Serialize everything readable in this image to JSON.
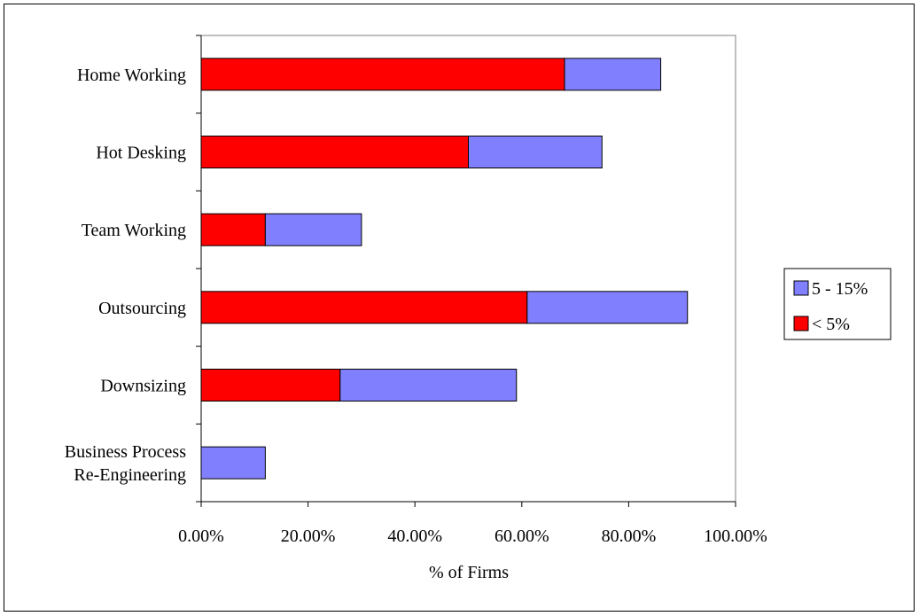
{
  "chart_data": {
    "type": "bar",
    "orientation": "horizontal",
    "stacked": true,
    "title": "",
    "xlabel": "% of Firms",
    "ylabel": "",
    "xlim": [
      0,
      1
    ],
    "categories": [
      [
        "Home Working"
      ],
      [
        "Hot Desking"
      ],
      [
        "Team Working"
      ],
      [
        "Outsourcing"
      ],
      [
        "Downsizing"
      ],
      [
        "Business Process",
        "Re-Engineering"
      ]
    ],
    "series": [
      {
        "name": "< 5%",
        "color": "#ff0000",
        "values": [
          0.68,
          0.5,
          0.12,
          0.61,
          0.26,
          0.0
        ]
      },
      {
        "name": "5 - 15%",
        "color": "#8080ff",
        "values": [
          0.18,
          0.25,
          0.18,
          0.3,
          0.33,
          0.12
        ]
      }
    ],
    "x_ticks": [
      "0.00%",
      "20.00%",
      "40.00%",
      "60.00%",
      "80.00%",
      "100.00%"
    ],
    "grid": false,
    "legend": {
      "placement": "right",
      "entries": [
        "5 - 15%",
        "< 5%"
      ],
      "entry_colors": [
        "#8080ff",
        "#ff0000"
      ]
    }
  }
}
